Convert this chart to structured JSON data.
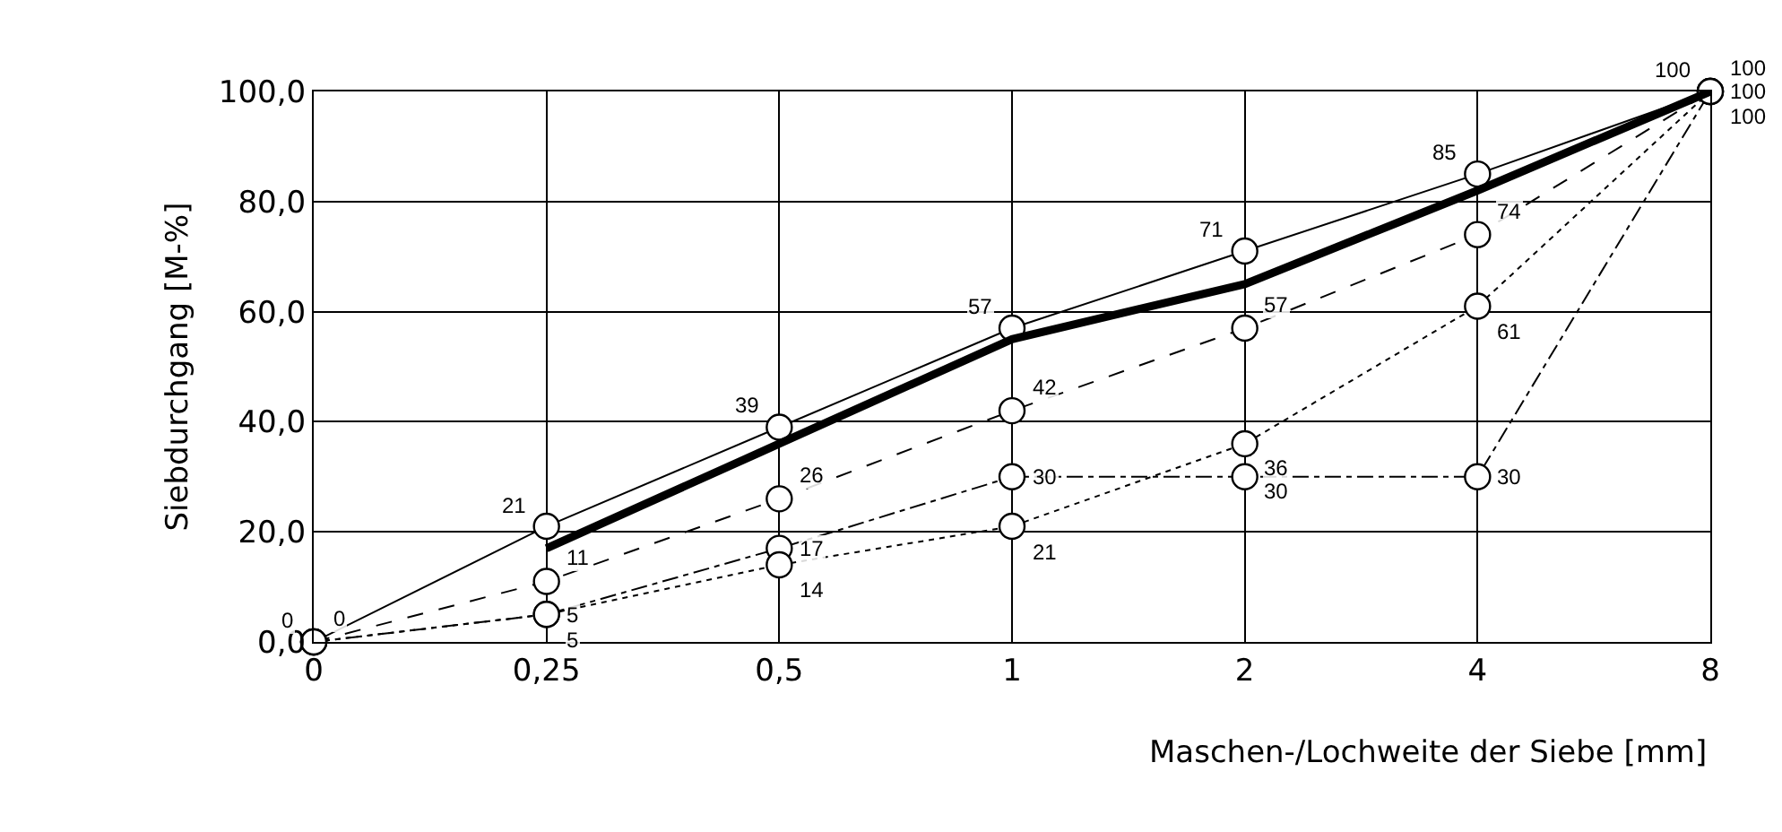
{
  "chart_data": {
    "type": "line",
    "xlabel": "Maschen-/Lochweite der Siebe [mm]",
    "ylabel": "Siebdurchgang [M-%]",
    "categories": [
      "0",
      "0,25",
      "0,5",
      "1",
      "2",
      "4",
      "8"
    ],
    "series": [
      {
        "color": "#000000",
        "line_style": "solid",
        "marker": "none",
        "values": [
          null,
          17,
          36,
          55,
          65,
          82,
          100
        ]
      },
      {
        "color": "#000000",
        "line_style": "solid",
        "marker": "circle",
        "values": [
          0,
          21,
          39,
          57,
          71,
          85,
          100
        ],
        "value_labels": [
          "0",
          "21",
          "39",
          "57",
          "71",
          "85",
          "100"
        ]
      },
      {
        "color": "#000000",
        "line_style": "dashed",
        "marker": "circle",
        "values": [
          0,
          11,
          26,
          42,
          57,
          74,
          100
        ],
        "value_labels": [
          "0",
          "11",
          "26",
          "42",
          "57",
          "74",
          "100"
        ]
      },
      {
        "color": "#000000",
        "line_style": "dashdot",
        "marker": "circle",
        "values": [
          0,
          5,
          17,
          30,
          30,
          30,
          100
        ],
        "value_labels": [
          null,
          "5",
          "17",
          "30",
          "30",
          "30",
          "100"
        ]
      },
      {
        "color": "#000000",
        "line_style": "dotted",
        "marker": "circle",
        "values": [
          0,
          5,
          14,
          21,
          36,
          61,
          100
        ],
        "value_labels": [
          null,
          "5",
          "14",
          "21",
          "36",
          "61",
          "100"
        ]
      }
    ],
    "ylim": [
      0,
      100
    ],
    "yticks": [
      {
        "value": 0,
        "label": "0,0"
      },
      {
        "value": 20,
        "label": "20,0"
      },
      {
        "value": 40,
        "label": "40,0"
      },
      {
        "value": 60,
        "label": "60,0"
      },
      {
        "value": 80,
        "label": "80,0"
      },
      {
        "value": 100,
        "label": "100,0"
      }
    ],
    "grid": true
  }
}
